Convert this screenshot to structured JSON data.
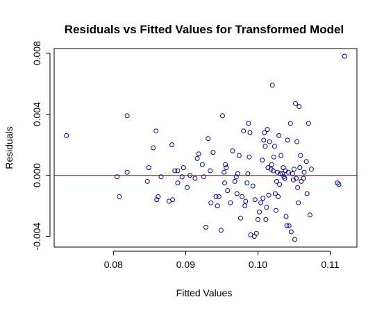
{
  "chart_data": {
    "type": "scatter",
    "title": "Residuals vs Fitted Values for Transformed Model",
    "xlabel": "Fitted Values",
    "ylabel": "Residuals",
    "xlim": [
      0.0718,
      0.1137
    ],
    "ylim": [
      -0.0047,
      0.0083
    ],
    "xticks": [
      0.08,
      0.09,
      0.1,
      0.11
    ],
    "xtick_labels": [
      "0.08",
      "0.09",
      "0.10",
      "0.11"
    ],
    "yticks": [
      -0.004,
      0.0,
      0.004,
      0.008
    ],
    "ytick_labels": [
      "-0.004",
      "0.000",
      "0.004",
      "0.008"
    ],
    "grid": false,
    "reference_line": {
      "y": 0.0,
      "color": "#cc0000"
    },
    "point_color": "#00008b",
    "points": [
      [
        0.0735,
        0.0026
      ],
      [
        0.0805,
        -0.0001
      ],
      [
        0.0808,
        -0.0014
      ],
      [
        0.0819,
        0.0002
      ],
      [
        0.0819,
        0.0039
      ],
      [
        0.0847,
        -0.0004
      ],
      [
        0.0849,
        0.0005
      ],
      [
        0.0855,
        0.0018
      ],
      [
        0.0859,
        0.0029
      ],
      [
        0.086,
        -0.0016
      ],
      [
        0.0862,
        -0.0014
      ],
      [
        0.0866,
        -0.0001
      ],
      [
        0.0877,
        -0.0017
      ],
      [
        0.0881,
        0.002
      ],
      [
        0.0882,
        -0.0016
      ],
      [
        0.0885,
        0.0003
      ],
      [
        0.0889,
        0.0003
      ],
      [
        0.0889,
        -0.0005
      ],
      [
        0.0895,
        -0.0001
      ],
      [
        0.0897,
        0.0005
      ],
      [
        0.0902,
        -0.0008
      ],
      [
        0.0906,
        0.0
      ],
      [
        0.0913,
        -0.0002
      ],
      [
        0.0916,
        0.0011
      ],
      [
        0.0918,
        0.0014
      ],
      [
        0.0923,
        0.0007
      ],
      [
        0.0925,
        -0.0001
      ],
      [
        0.0928,
        -0.0034
      ],
      [
        0.0931,
        0.0024
      ],
      [
        0.0934,
        0.0003
      ],
      [
        0.0935,
        -0.0018
      ],
      [
        0.0938,
        0.0015
      ],
      [
        0.0942,
        -0.0014
      ],
      [
        0.0944,
        -0.002
      ],
      [
        0.0946,
        -0.0014
      ],
      [
        0.0949,
        -0.0036
      ],
      [
        0.0951,
        0.0039
      ],
      [
        0.0953,
        0.0002
      ],
      [
        0.0954,
        -0.0005
      ],
      [
        0.0955,
        0.0007
      ],
      [
        0.0956,
        0.0005
      ],
      [
        0.0958,
        -0.001
      ],
      [
        0.0962,
        -0.0018
      ],
      [
        0.0965,
        0.0016
      ],
      [
        0.0968,
        -0.0004
      ],
      [
        0.097,
        -0.0001
      ],
      [
        0.0971,
        -0.0012
      ],
      [
        0.0972,
        0.0001
      ],
      [
        0.0974,
        0.0013
      ],
      [
        0.0976,
        -0.0028
      ],
      [
        0.0978,
        -0.0014
      ],
      [
        0.098,
        0.0029
      ],
      [
        0.0982,
        -0.002
      ],
      [
        0.0983,
        -0.0017
      ],
      [
        0.0985,
        -0.0005
      ],
      [
        0.0986,
        0.0001
      ],
      [
        0.0987,
        0.0034
      ],
      [
        0.0988,
        0.0012
      ],
      [
        0.0989,
        0.0028
      ],
      [
        0.099,
        -0.0039
      ],
      [
        0.0993,
        -0.0007
      ],
      [
        0.0995,
        -0.004
      ],
      [
        0.0996,
        -0.0016
      ],
      [
        0.0998,
        -0.0038
      ],
      [
        0.1,
        -0.0029
      ],
      [
        0.1002,
        -0.0024
      ],
      [
        0.1004,
        -0.0018
      ],
      [
        0.1006,
        0.001
      ],
      [
        0.1007,
        -0.0015
      ],
      [
        0.1008,
        0.0023
      ],
      [
        0.1009,
        0.0028
      ],
      [
        0.101,
        0.0019
      ],
      [
        0.1011,
        -0.0029
      ],
      [
        0.1012,
        -0.0021
      ],
      [
        0.1013,
        0.003
      ],
      [
        0.1014,
        0.0005
      ],
      [
        0.1015,
        -0.0013
      ],
      [
        0.1016,
        0.0022
      ],
      [
        0.1018,
        0.0004
      ],
      [
        0.1019,
        0.0007
      ],
      [
        0.102,
        0.0059
      ],
      [
        0.1021,
        0.0003
      ],
      [
        0.1022,
        0.0012
      ],
      [
        0.1023,
        0.0019
      ],
      [
        0.1024,
        -0.0012
      ],
      [
        0.1025,
        -0.0023
      ],
      [
        0.1026,
        -0.0004
      ],
      [
        0.1027,
        0.0002
      ],
      [
        0.1028,
        -0.0014
      ],
      [
        0.1029,
        0.0026
      ],
      [
        0.103,
        -0.0006
      ],
      [
        0.1031,
        0.0001
      ],
      [
        0.1032,
        0.0013
      ],
      [
        0.1034,
        0.0001
      ],
      [
        0.1035,
        0.0005
      ],
      [
        0.1036,
        -0.0001
      ],
      [
        0.1037,
        -0.0002
      ],
      [
        0.1038,
        0.0003
      ],
      [
        0.1039,
        -0.0027
      ],
      [
        0.104,
        -0.0033
      ],
      [
        0.1041,
        0.0023
      ],
      [
        0.1042,
        0.0002
      ],
      [
        0.1043,
        -0.0033
      ],
      [
        0.1045,
        0.0034
      ],
      [
        0.1046,
        -0.0037
      ],
      [
        0.1048,
        0.0001
      ],
      [
        0.1049,
        -0.0003
      ],
      [
        0.105,
        0.0004
      ],
      [
        0.1051,
        -0.0042
      ],
      [
        0.1052,
        0.0047
      ],
      [
        0.1053,
        -0.0002
      ],
      [
        0.1054,
        0.0022
      ],
      [
        0.1055,
        -0.0008
      ],
      [
        0.1056,
        -0.0018
      ],
      [
        0.1057,
        0.0045
      ],
      [
        0.1058,
        0.0005
      ],
      [
        0.1059,
        0.0013
      ],
      [
        0.106,
        -0.0004
      ],
      [
        0.1063,
        -0.0002
      ],
      [
        0.1064,
        0.0002
      ],
      [
        0.1067,
        0.0009
      ],
      [
        0.1068,
        -0.0012
      ],
      [
        0.107,
        0.0034
      ],
      [
        0.1072,
        -0.0026
      ],
      [
        0.1074,
        0.0004
      ],
      [
        0.111,
        -0.0005
      ],
      [
        0.1112,
        -0.0006
      ],
      [
        0.112,
        0.0078
      ]
    ]
  }
}
